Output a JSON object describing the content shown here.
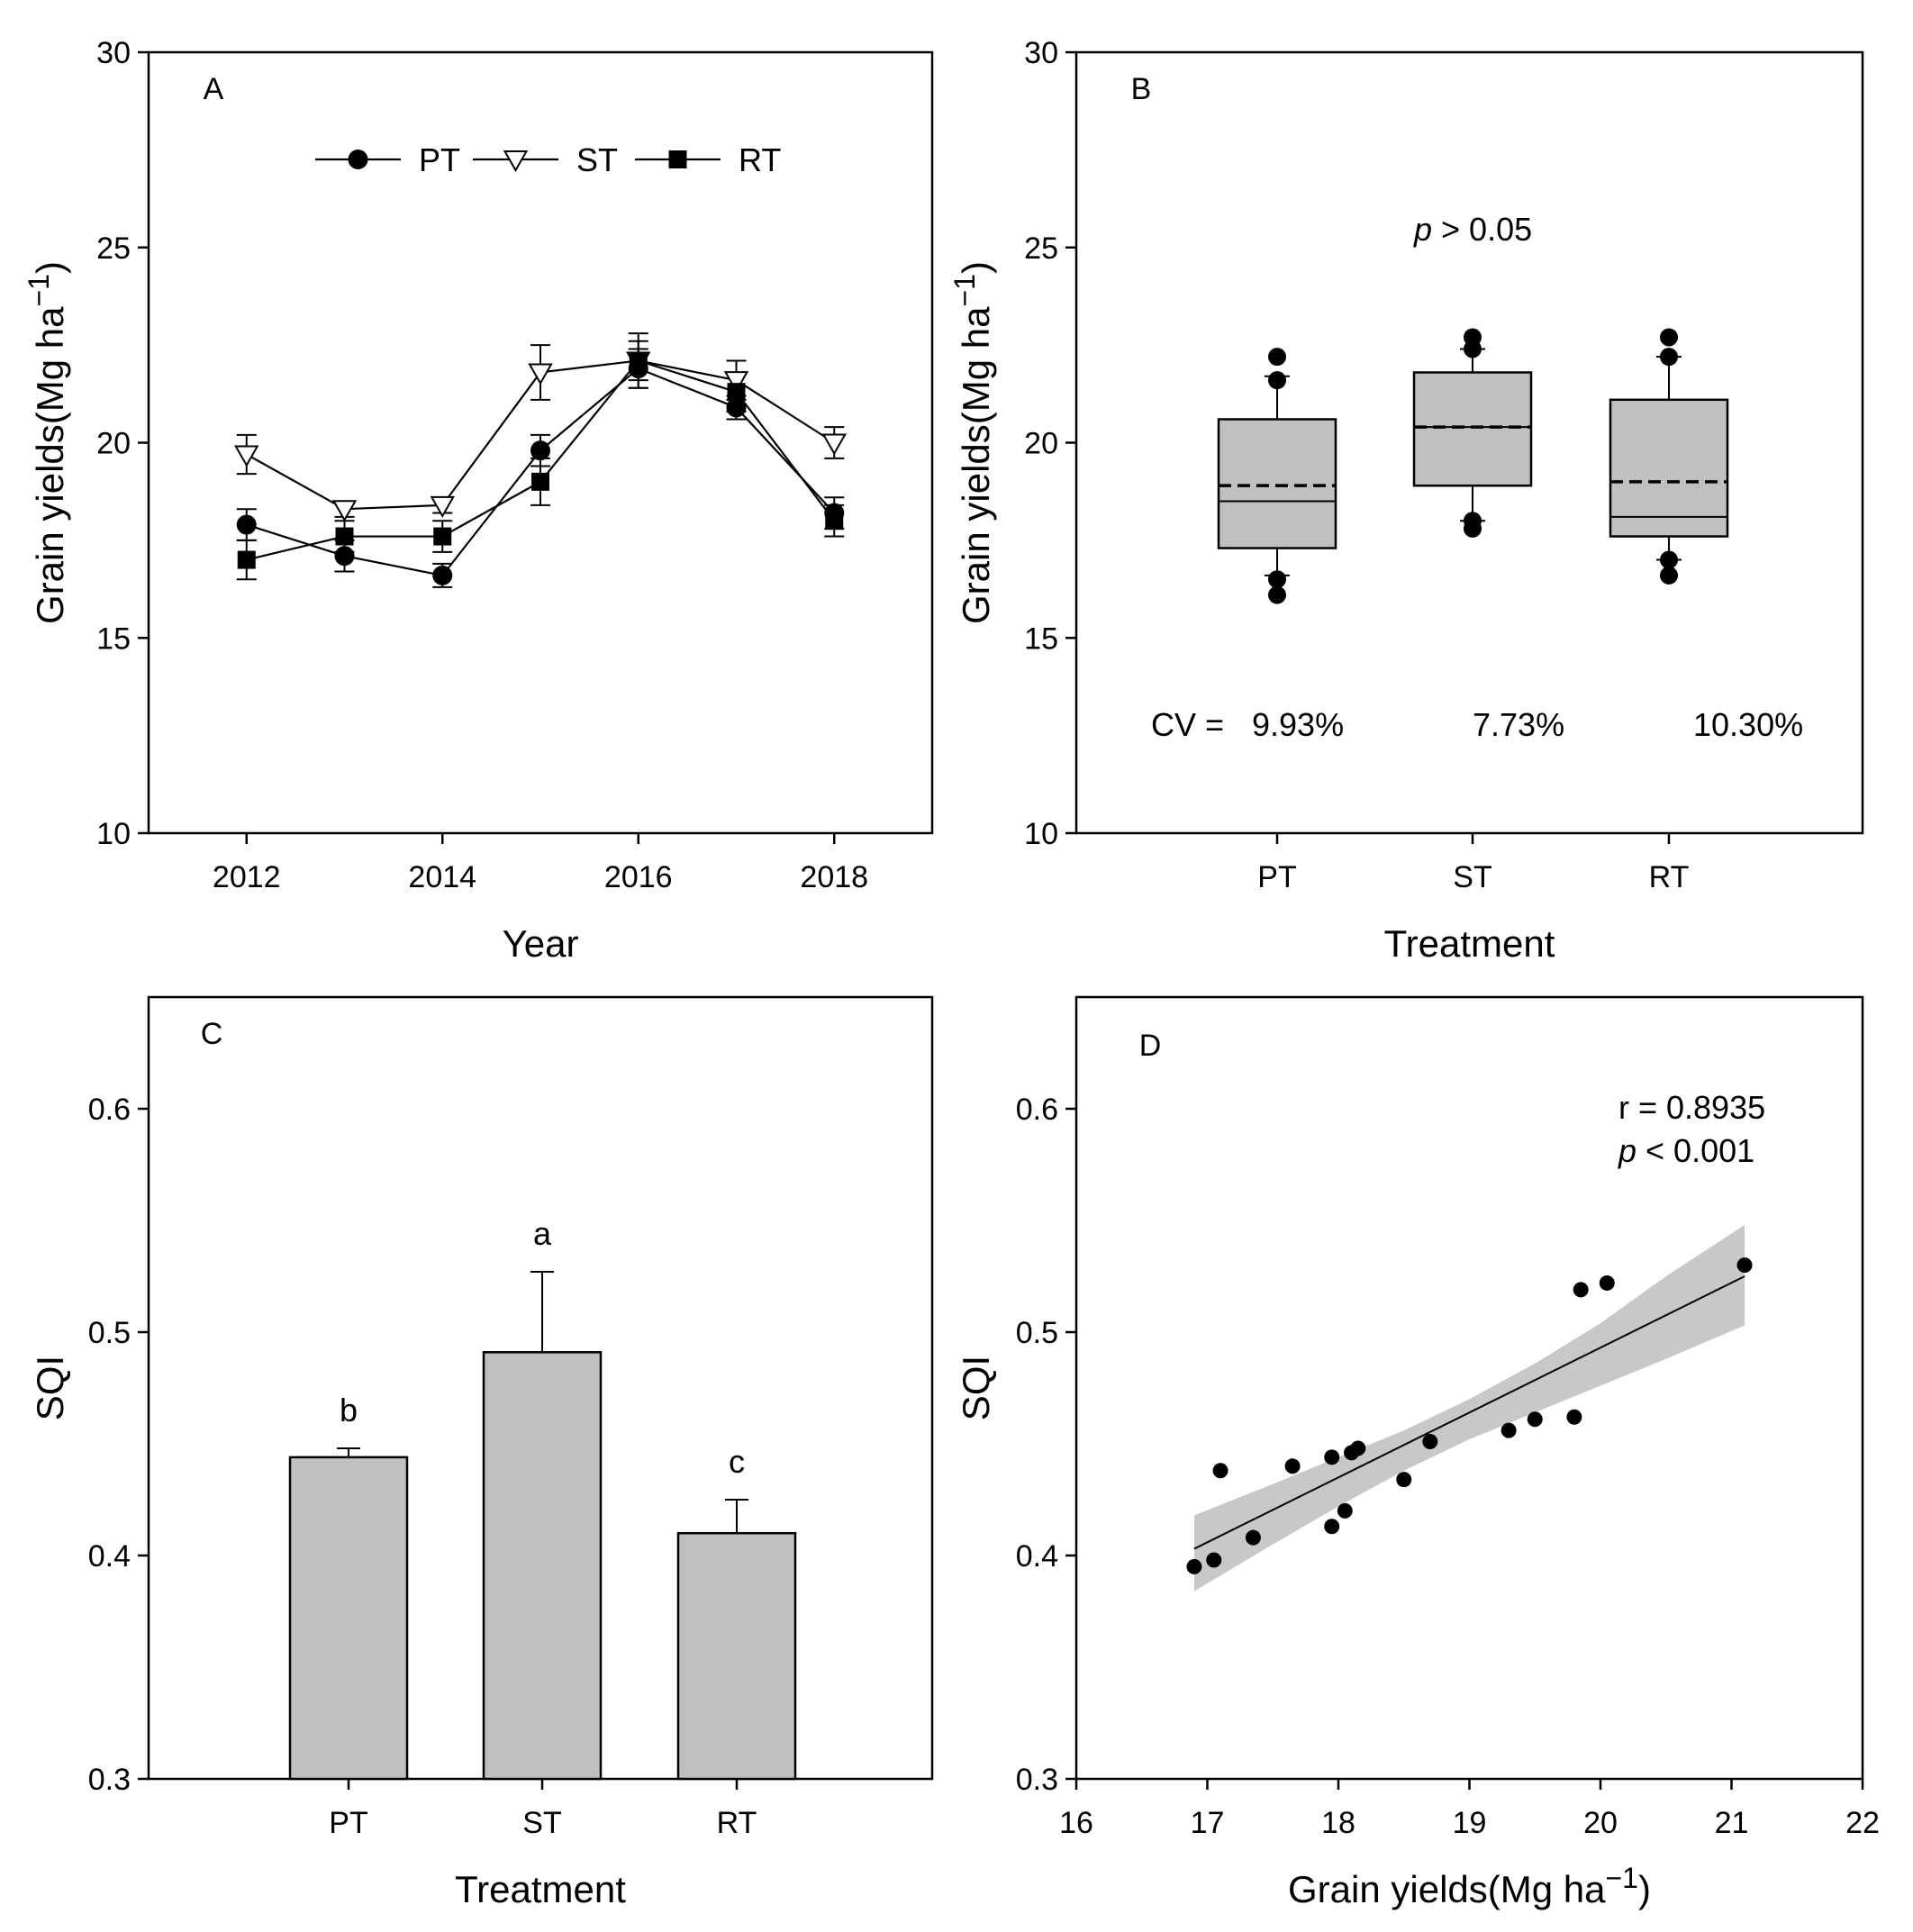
{
  "chart_data": [
    {
      "panel": "A",
      "type": "line",
      "panel_label": "A",
      "xlabel": "Year",
      "ylabel_main": "Grain yields(Mg ha",
      "ylabel_sup": "−1",
      "ylabel_close": ")",
      "xlim": [
        2011,
        2019
      ],
      "ylim": [
        10,
        30
      ],
      "xticks": [
        2012,
        2014,
        2016,
        2018
      ],
      "yticks": [
        10,
        15,
        20,
        25,
        30
      ],
      "x": [
        2012,
        2013,
        2014,
        2015,
        2016,
        2017,
        2018
      ],
      "series": [
        {
          "name": "PT",
          "marker": "circle",
          "values": [
            17.9,
            17.1,
            16.6,
            19.8,
            21.9,
            20.9,
            18.2
          ],
          "err": [
            0.4,
            0.4,
            0.3,
            0.4,
            0.5,
            0.3,
            0.4
          ]
        },
        {
          "name": "ST",
          "marker": "triangle-open",
          "values": [
            19.7,
            18.3,
            18.4,
            21.8,
            22.1,
            21.6,
            20.0
          ],
          "err": [
            0.5,
            0.2,
            0.2,
            0.7,
            0.7,
            0.5,
            0.4
          ]
        },
        {
          "name": "RT",
          "marker": "square",
          "values": [
            17.0,
            17.6,
            17.6,
            19.0,
            22.1,
            21.3,
            18.0
          ],
          "err": [
            0.5,
            0.4,
            0.4,
            0.6,
            0.5,
            0.5,
            0.4
          ]
        }
      ]
    },
    {
      "panel": "B",
      "type": "box",
      "panel_label": "B",
      "xlabel": "Treatment",
      "ylabel_main": "Grain yields(Mg ha",
      "ylabel_sup": "−1",
      "ylabel_close": ")",
      "ylim": [
        10,
        30
      ],
      "yticks": [
        10,
        15,
        20,
        25,
        30
      ],
      "categories": [
        "PT",
        "ST",
        "RT"
      ],
      "boxes": [
        {
          "name": "PT",
          "q1": 17.3,
          "median": 18.5,
          "mean": 18.9,
          "q3": 20.6,
          "whisker_low": 16.6,
          "whisker_high": 21.7,
          "outliers": [
            16.1,
            16.5,
            21.6,
            22.2
          ]
        },
        {
          "name": "ST",
          "q1": 18.9,
          "median": 20.4,
          "mean": 20.4,
          "q3": 21.8,
          "whisker_low": 18.0,
          "whisker_high": 22.4,
          "outliers": [
            17.8,
            18.0,
            22.4,
            22.7
          ]
        },
        {
          "name": "RT",
          "q1": 17.6,
          "median": 18.1,
          "mean": 19.0,
          "q3": 21.1,
          "whisker_low": 17.0,
          "whisker_high": 22.2,
          "outliers": [
            16.6,
            17.0,
            22.2,
            22.7
          ]
        }
      ],
      "p_italic": "p",
      "p_rest": " > 0.05",
      "cv_prefix": "CV = ",
      "cv_values": [
        "9.93%",
        "7.73%",
        "10.30%"
      ]
    },
    {
      "panel": "C",
      "type": "bar",
      "panel_label": "C",
      "xlabel": "Treatment",
      "ylabel": "SQI",
      "ylim": [
        0.3,
        0.65
      ],
      "yticks": [
        0.3,
        0.4,
        0.5,
        0.6
      ],
      "categories": [
        "PT",
        "ST",
        "RT"
      ],
      "values": [
        0.444,
        0.491,
        0.41
      ],
      "err": [
        0.004,
        0.036,
        0.015
      ],
      "letters": [
        "b",
        "a",
        "c"
      ]
    },
    {
      "panel": "D",
      "type": "scatter",
      "panel_label": "D",
      "xlabel_main": "Grain yields(Mg ha",
      "xlabel_sup": "−1",
      "xlabel_close": ")",
      "ylabel": "SQI",
      "xlim": [
        16,
        22
      ],
      "ylim": [
        0.3,
        0.65
      ],
      "xticks": [
        16,
        17,
        18,
        19,
        20,
        21,
        22
      ],
      "yticks": [
        0.3,
        0.4,
        0.5,
        0.6
      ],
      "points": [
        [
          16.9,
          0.395
        ],
        [
          17.05,
          0.398
        ],
        [
          17.1,
          0.438
        ],
        [
          17.35,
          0.408
        ],
        [
          17.65,
          0.44
        ],
        [
          17.95,
          0.444
        ],
        [
          17.95,
          0.413
        ],
        [
          18.05,
          0.42
        ],
        [
          18.1,
          0.446
        ],
        [
          18.15,
          0.448
        ],
        [
          18.5,
          0.434
        ],
        [
          18.7,
          0.451
        ],
        [
          19.3,
          0.456
        ],
        [
          19.5,
          0.461
        ],
        [
          19.8,
          0.462
        ],
        [
          19.85,
          0.519
        ],
        [
          20.05,
          0.522
        ],
        [
          21.1,
          0.53
        ]
      ],
      "fit": {
        "x": [
          16.9,
          21.1
        ],
        "y": [
          0.403,
          0.525
        ]
      },
      "ci": {
        "x": [
          16.9,
          17.5,
          18.0,
          18.5,
          19.0,
          19.5,
          20.0,
          20.5,
          21.1
        ],
        "lower": [
          0.384,
          0.405,
          0.422,
          0.438,
          0.452,
          0.464,
          0.476,
          0.488,
          0.503
        ],
        "upper": [
          0.418,
          0.432,
          0.444,
          0.456,
          0.47,
          0.486,
          0.504,
          0.525,
          0.548
        ]
      },
      "r_text": "r = 0.8935",
      "p_italic": "p",
      "p_rest": " < 0.001"
    }
  ],
  "colors": {
    "fill": "#c0c0c0",
    "ci": "#c8c8c8",
    "line": "#000000",
    "open": "#ffffff"
  }
}
